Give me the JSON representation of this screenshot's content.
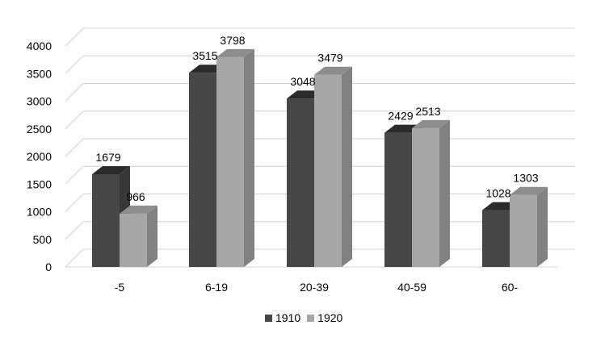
{
  "chart_data": {
    "type": "bar",
    "style": "3d-clustered-column",
    "categories": [
      "-5",
      "6-19",
      "20-39",
      "40-59",
      "60-"
    ],
    "series": [
      {
        "name": "1910",
        "values": [
          1679,
          3515,
          3048,
          2429,
          1028
        ],
        "color": "#474747"
      },
      {
        "name": "1920",
        "values": [
          966,
          3798,
          3479,
          2513,
          1303
        ],
        "color": "#a6a6a6"
      }
    ],
    "yticks": [
      "0",
      "500",
      "1000",
      "1500",
      "2000",
      "2500",
      "3000",
      "3500",
      "4000"
    ],
    "ylim": [
      0,
      4000
    ],
    "grid": true,
    "legend_position": "bottom"
  }
}
